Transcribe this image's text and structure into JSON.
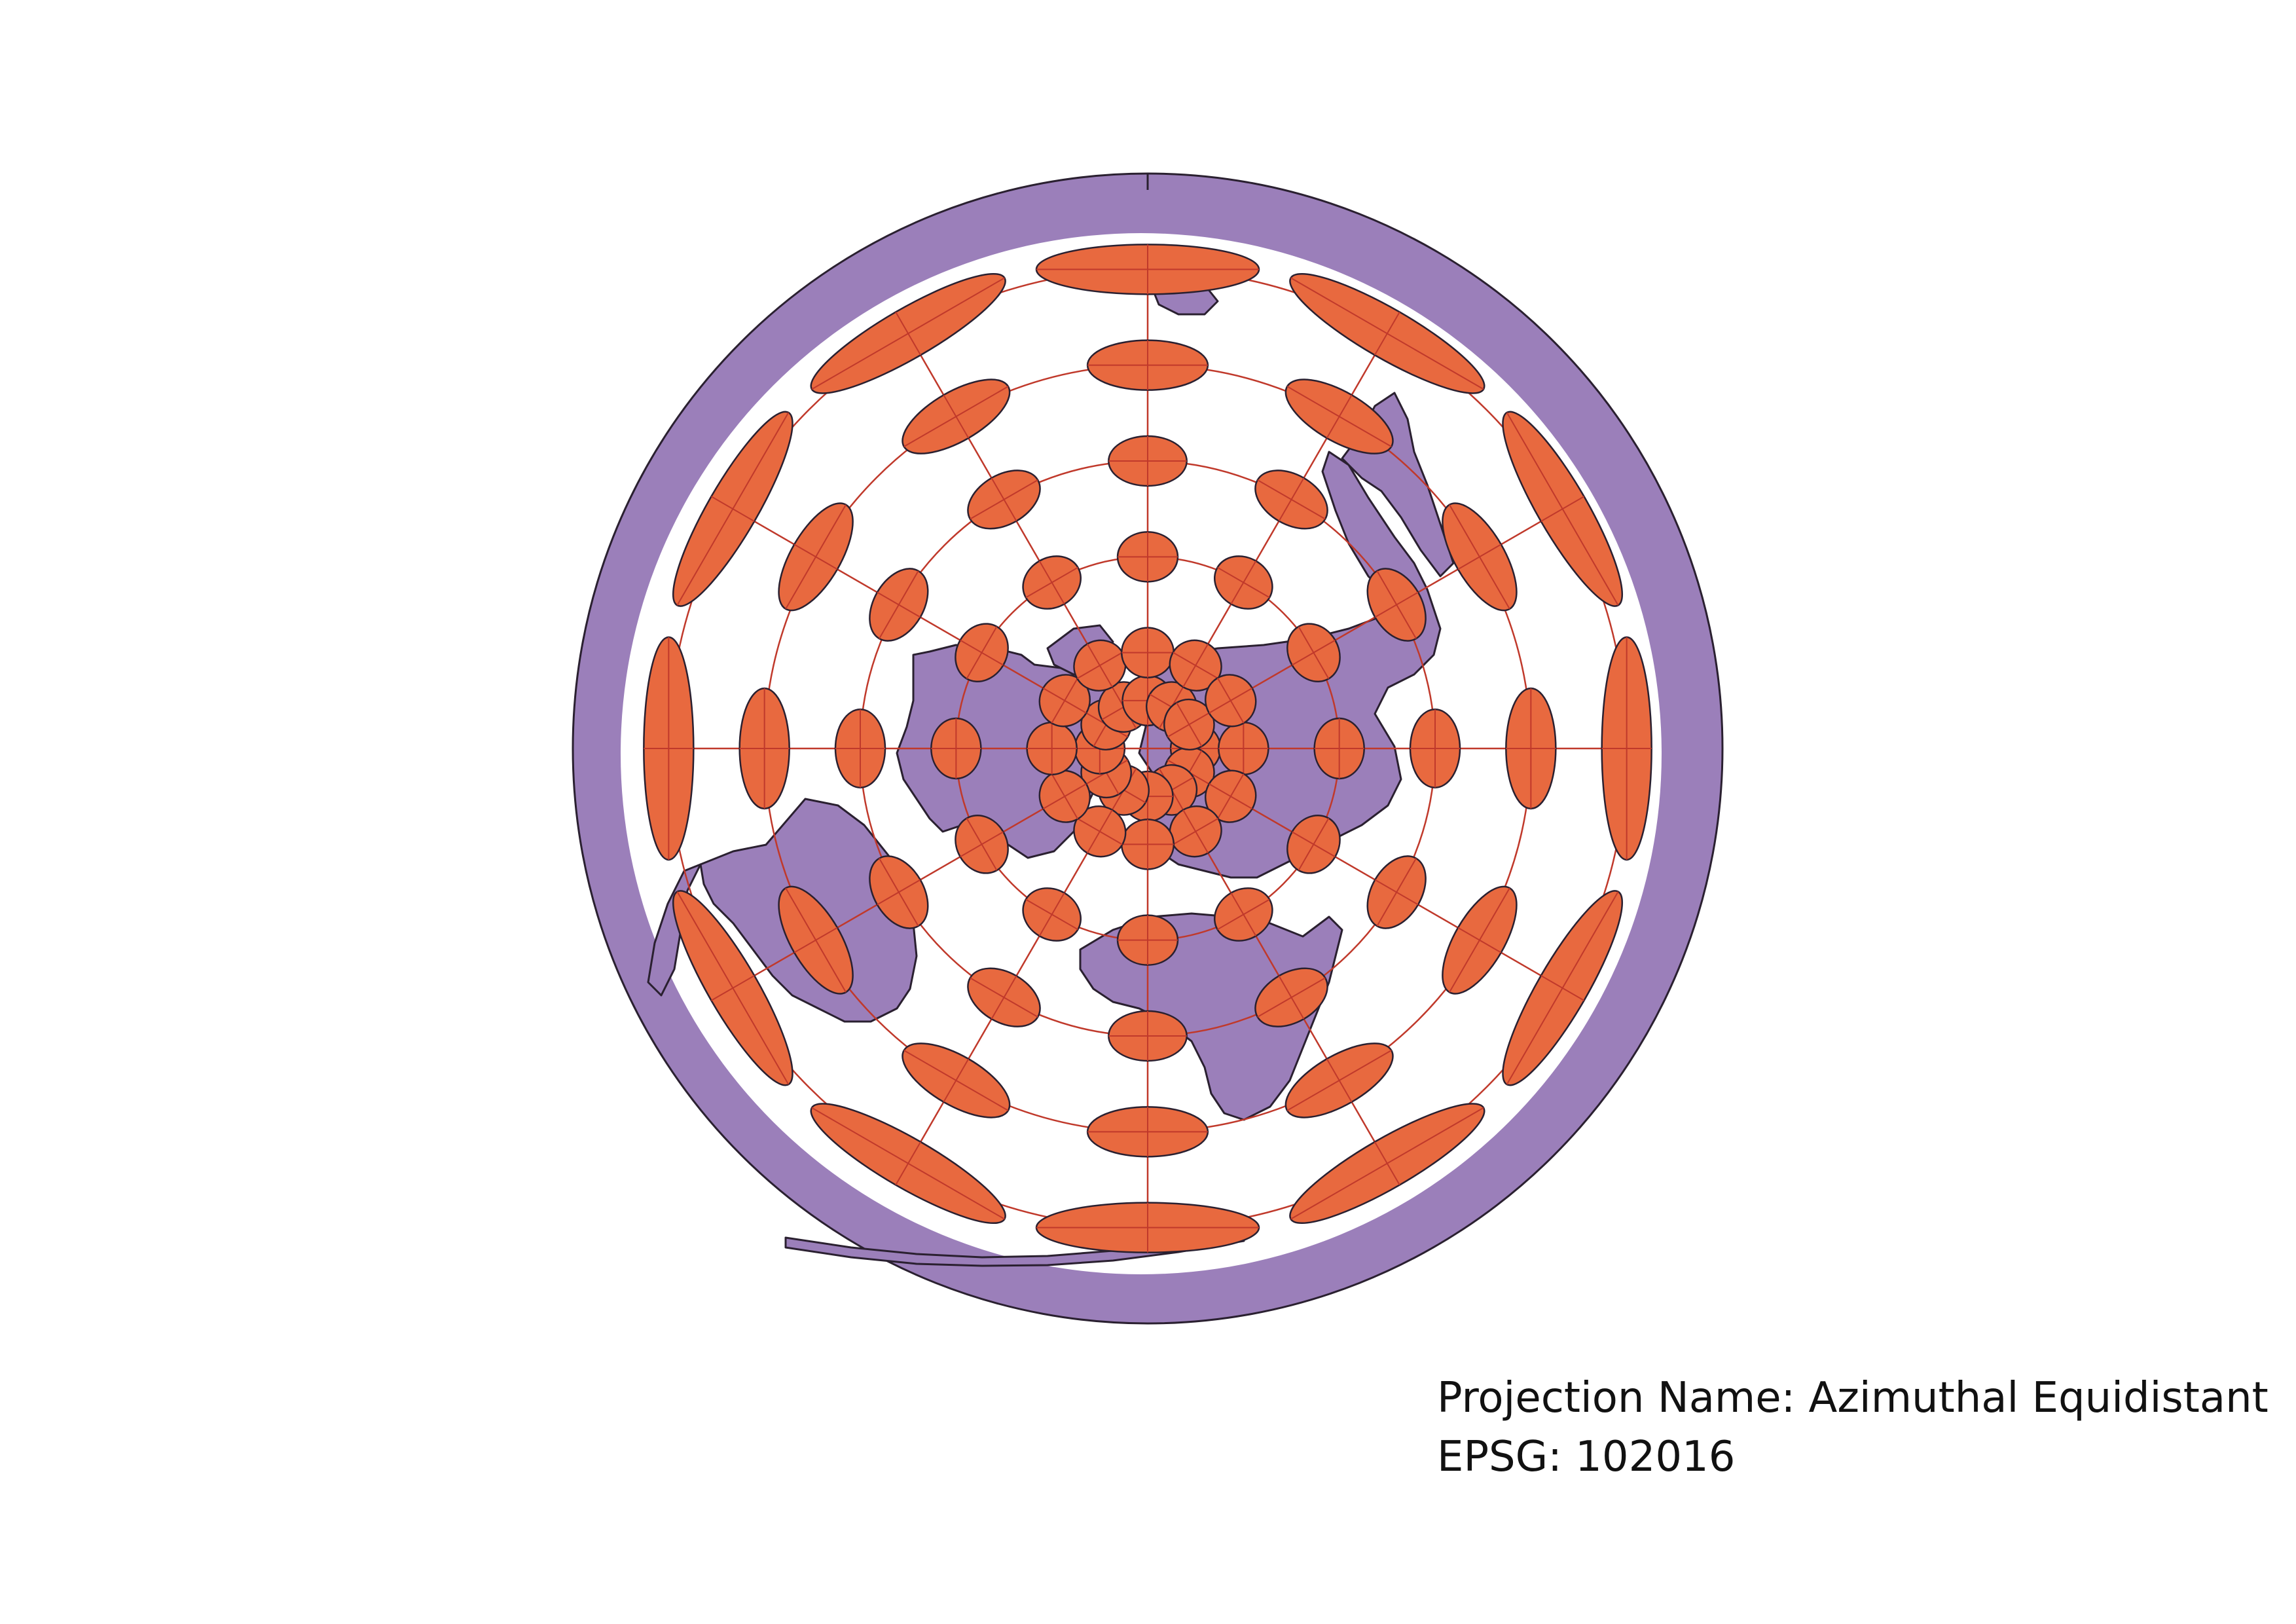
{
  "caption": {
    "projection_line": "Projection Name: Azimuthal Equidistant",
    "epsg_line": "EPSG: 102016"
  },
  "map": {
    "projection": "Azimuthal Equidistant",
    "epsg": "102016",
    "center": "north-pole",
    "colors": {
      "outer_ring": "#9b7fba",
      "land": "#9b7fba",
      "ocean": "#ffffff",
      "outline": "#2a2030",
      "graticule": "#c0392b",
      "tissot_fill": "#e8693f",
      "tissot_stroke": "#2a2030"
    },
    "graticule": {
      "meridian_step_deg": 30,
      "parallels_deg": [
        60,
        30,
        0,
        -30,
        -60
      ]
    },
    "tissot_indicatrices": {
      "meridian_step_deg": 30,
      "latitudes_deg": [
        75,
        60,
        30,
        0,
        -30,
        -60
      ]
    }
  }
}
